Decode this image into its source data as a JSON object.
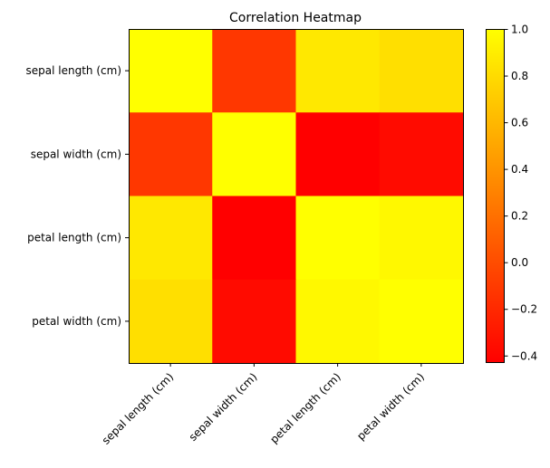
{
  "chart_data": {
    "type": "heatmap",
    "title": "Correlation Heatmap",
    "row_labels": [
      "sepal length (cm)",
      "sepal width (cm)",
      "petal length (cm)",
      "petal width (cm)"
    ],
    "col_labels": [
      "sepal length (cm)",
      "sepal width (cm)",
      "petal length (cm)",
      "petal width (cm)"
    ],
    "values": [
      [
        1.0,
        -0.118,
        0.872,
        0.818
      ],
      [
        -0.118,
        1.0,
        -0.428,
        -0.366
      ],
      [
        0.872,
        -0.428,
        1.0,
        0.963
      ],
      [
        0.818,
        -0.366,
        0.963,
        1.0
      ]
    ],
    "colormap": "autumn",
    "colormap_colors": [
      "#ff0000",
      "#ffff00"
    ],
    "colorbar": {
      "range": [
        -0.428,
        1.0
      ],
      "ticks": [
        1.0,
        0.8,
        0.6,
        0.4,
        0.2,
        0.0,
        -0.2,
        -0.4
      ],
      "tick_labels": [
        "1.0",
        "0.8",
        "0.6",
        "0.4",
        "0.2",
        "0.0",
        "−0.2",
        "−0.4"
      ]
    }
  }
}
